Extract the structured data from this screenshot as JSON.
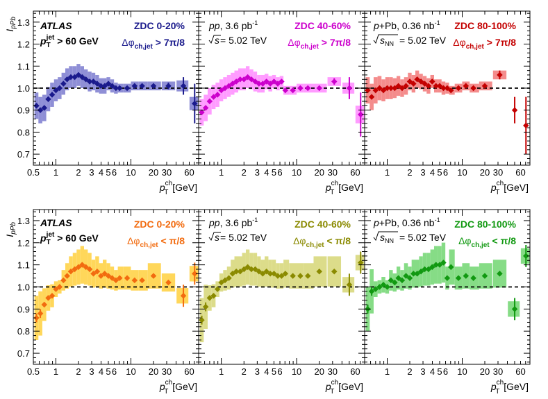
{
  "labels": {
    "atlas": "ATLAS",
    "jet_cut_1": "p",
    "jet_cut_2": "T",
    "jet_cut_3": "jet",
    "jet_cut_4": " > 60 GeV",
    "pp_1": "pp",
    "pp_2": ", 3.6 pb",
    "pp_3": "-1",
    "sqrt_s": "s",
    "energy": " = 5.02 TeV",
    "ppb_1": "p",
    "ppb_2": "+Pb, 0.36 nb",
    "ppb_3": "-1",
    "sqrt_snn": "s",
    "sqrt_snn_sub": "NN",
    "ylabel_main": "I",
    "ylabel_sub": "pPb",
    "xlabel_main": "p",
    "xlabel_sup": "ch",
    "xlabel_sub": "T",
    "xlabel_unit": " [GeV]",
    "dphi_sym": "Δφ",
    "dphi_sub": "ch,jet",
    "cut_away": " > 7π/8",
    "cut_near": " < π/8"
  },
  "chart_data": [
    {
      "type": "scatter",
      "title": "ZDC 0-20%",
      "selection": "away",
      "color": "#1a1a8c",
      "band_color": "#8f8fd6",
      "xlabel": "p_T^ch [GeV]",
      "ylabel": "I_pPb",
      "xscale": "log",
      "xlim": [
        0.5,
        80
      ],
      "ylim": [
        0.65,
        1.35
      ],
      "x": [
        0.55,
        0.62,
        0.7,
        0.79,
        0.89,
        1.0,
        1.12,
        1.26,
        1.41,
        1.58,
        1.78,
        2.0,
        2.24,
        2.51,
        2.82,
        3.16,
        3.55,
        3.98,
        4.47,
        5.01,
        5.62,
        6.31,
        7.08,
        8.91,
        11.2,
        14.1,
        20.0,
        31.6,
        50.1,
        70.8
      ],
      "values": [
        0.92,
        0.9,
        0.91,
        0.95,
        0.97,
        0.99,
        1.0,
        1.02,
        1.04,
        1.05,
        1.05,
        1.06,
        1.05,
        1.04,
        1.03,
        1.03,
        1.02,
        1.01,
        1.01,
        1.02,
        1.01,
        1.0,
        1.0,
        1.0,
        1.01,
        1.01,
        1.01,
        1.01,
        1.01,
        0.93
      ],
      "band": [
        0.06,
        0.06,
        0.06,
        0.055,
        0.055,
        0.05,
        0.05,
        0.05,
        0.05,
        0.05,
        0.05,
        0.05,
        0.05,
        0.045,
        0.045,
        0.04,
        0.04,
        0.035,
        0.035,
        0.03,
        0.03,
        0.025,
        0.02,
        0.02,
        0.02,
        0.02,
        0.02,
        0.02,
        0.025,
        0.03
      ],
      "err": [
        0.01,
        0.01,
        0.01,
        0.01,
        0.01,
        0.01,
        0.01,
        0.01,
        0.01,
        0.01,
        0.01,
        0.01,
        0.01,
        0.01,
        0.01,
        0.01,
        0.01,
        0.01,
        0.01,
        0.01,
        0.01,
        0.01,
        0.01,
        0.01,
        0.01,
        0.01,
        0.01,
        0.015,
        0.04,
        0.09
      ]
    },
    {
      "type": "scatter",
      "title": "ZDC 40-60%",
      "selection": "away",
      "color": "#cc00cc",
      "band_color": "#ff9cff",
      "xlabel": "p_T^ch [GeV]",
      "ylabel": "I_pPb",
      "xscale": "log",
      "xlim": [
        0.5,
        80
      ],
      "ylim": [
        0.65,
        1.35
      ],
      "x": [
        0.55,
        0.62,
        0.7,
        0.79,
        0.89,
        1.0,
        1.12,
        1.26,
        1.41,
        1.58,
        1.78,
        2.0,
        2.24,
        2.51,
        2.82,
        3.16,
        3.55,
        3.98,
        4.47,
        5.01,
        5.62,
        6.31,
        7.08,
        8.91,
        11.2,
        14.1,
        20.0,
        31.6,
        50.1,
        70.8
      ],
      "values": [
        0.89,
        0.91,
        0.94,
        0.96,
        0.97,
        0.99,
        1.0,
        1.01,
        1.02,
        1.03,
        1.04,
        1.04,
        1.05,
        1.04,
        1.03,
        1.02,
        1.02,
        1.03,
        1.02,
        1.03,
        1.02,
        1.03,
        0.99,
        0.99,
        1.0,
        1.0,
        1.0,
        1.03,
        1.0,
        0.88
      ],
      "band": [
        0.06,
        0.06,
        0.06,
        0.055,
        0.055,
        0.05,
        0.05,
        0.05,
        0.05,
        0.05,
        0.05,
        0.05,
        0.05,
        0.045,
        0.045,
        0.04,
        0.04,
        0.035,
        0.035,
        0.03,
        0.03,
        0.025,
        0.02,
        0.02,
        0.02,
        0.02,
        0.02,
        0.02,
        0.025,
        0.04
      ],
      "err": [
        0.01,
        0.01,
        0.01,
        0.01,
        0.01,
        0.01,
        0.01,
        0.01,
        0.01,
        0.01,
        0.01,
        0.01,
        0.01,
        0.01,
        0.01,
        0.01,
        0.01,
        0.01,
        0.01,
        0.01,
        0.01,
        0.01,
        0.01,
        0.01,
        0.01,
        0.01,
        0.01,
        0.015,
        0.05,
        0.1
      ]
    },
    {
      "type": "scatter",
      "title": "ZDC 80-100%",
      "selection": "away",
      "color": "#c40000",
      "band_color": "#f48c8c",
      "xlabel": "p_T^ch [GeV]",
      "ylabel": "I_pPb",
      "xscale": "log",
      "xlim": [
        0.5,
        80
      ],
      "ylim": [
        0.65,
        1.35
      ],
      "x": [
        0.55,
        0.62,
        0.7,
        0.79,
        0.89,
        1.0,
        1.12,
        1.26,
        1.41,
        1.58,
        1.78,
        2.0,
        2.24,
        2.51,
        2.82,
        3.16,
        3.55,
        3.98,
        4.47,
        5.01,
        5.62,
        6.31,
        7.08,
        8.91,
        11.2,
        14.1,
        20.0,
        31.6,
        50.1,
        70.8
      ],
      "values": [
        0.99,
        0.96,
        0.99,
        1.0,
        0.99,
        1.0,
        1.0,
        1.0,
        1.01,
        1.0,
        1.01,
        1.03,
        1.02,
        1.04,
        1.03,
        1.02,
        1.01,
        1.03,
        1.01,
        1.01,
        1.0,
        1.0,
        0.99,
        1.0,
        1.01,
        1.0,
        1.01,
        1.06,
        0.9,
        0.83
      ],
      "band": [
        0.06,
        0.06,
        0.06,
        0.055,
        0.05,
        0.05,
        0.05,
        0.045,
        0.045,
        0.04,
        0.04,
        0.04,
        0.04,
        0.04,
        0.035,
        0.035,
        0.035,
        0.03,
        0.03,
        0.03,
        0.03,
        0.025,
        0.02,
        0.02,
        0.02,
        0.02,
        0.02,
        0.02,
        0.0,
        0.0
      ],
      "err": [
        0.01,
        0.01,
        0.01,
        0.01,
        0.01,
        0.01,
        0.01,
        0.01,
        0.01,
        0.01,
        0.01,
        0.01,
        0.01,
        0.01,
        0.01,
        0.01,
        0.01,
        0.01,
        0.01,
        0.01,
        0.01,
        0.01,
        0.01,
        0.01,
        0.01,
        0.01,
        0.01,
        0.02,
        0.06,
        0.13
      ]
    },
    {
      "type": "scatter",
      "title": "ZDC 0-20%",
      "selection": "near",
      "color": "#f26b0f",
      "band_color": "#ffd75a",
      "xlabel": "p_T^ch [GeV]",
      "ylabel": "I_pPb",
      "xscale": "log",
      "xlim": [
        0.5,
        80
      ],
      "ylim": [
        0.65,
        1.35
      ],
      "x": [
        0.55,
        0.62,
        0.7,
        0.79,
        0.89,
        1.0,
        1.12,
        1.26,
        1.41,
        1.58,
        1.78,
        2.0,
        2.24,
        2.51,
        2.82,
        3.16,
        3.55,
        3.98,
        4.47,
        5.01,
        5.62,
        6.31,
        7.08,
        8.91,
        11.2,
        14.1,
        20.0,
        31.6,
        50.1,
        70.8
      ],
      "values": [
        0.86,
        0.88,
        0.92,
        0.95,
        0.96,
        0.99,
        1.0,
        1.03,
        1.05,
        1.07,
        1.08,
        1.09,
        1.1,
        1.09,
        1.08,
        1.06,
        1.07,
        1.05,
        1.06,
        1.05,
        1.04,
        1.03,
        1.04,
        1.04,
        1.03,
        1.03,
        1.05,
        1.02,
        0.96,
        1.06
      ]
    },
    {
      "type": "scatter",
      "title": "ZDC 40-60%",
      "selection": "near",
      "color": "#8a8a00",
      "band_color": "#dcdc8a",
      "xlabel": "p_T^ch [GeV]",
      "ylabel": "I_pPb",
      "xscale": "log",
      "xlim": [
        0.5,
        80
      ],
      "ylim": [
        0.65,
        1.35
      ],
      "x": [
        0.55,
        0.62,
        0.7,
        0.79,
        0.89,
        1.0,
        1.12,
        1.26,
        1.41,
        1.58,
        1.78,
        2.0,
        2.24,
        2.51,
        2.82,
        3.16,
        3.55,
        3.98,
        4.47,
        5.01,
        5.62,
        6.31,
        7.08,
        8.91,
        11.2,
        14.1,
        20.0,
        31.6,
        50.1,
        70.8
      ],
      "values": [
        0.85,
        0.91,
        0.95,
        0.96,
        0.99,
        1.02,
        1.03,
        1.04,
        1.06,
        1.07,
        1.07,
        1.08,
        1.09,
        1.08,
        1.08,
        1.07,
        1.06,
        1.07,
        1.06,
        1.06,
        1.05,
        1.05,
        1.06,
        1.05,
        1.05,
        1.05,
        1.07,
        1.07,
        1.01,
        1.11
      ]
    },
    {
      "type": "scatter",
      "title": "ZDC 80-100%",
      "selection": "near",
      "color": "#119911",
      "band_color": "#86dc86",
      "xlabel": "p_T^ch [GeV]",
      "ylabel": "I_pPb",
      "xscale": "log",
      "xlim": [
        0.5,
        80
      ],
      "ylim": [
        0.65,
        1.35
      ],
      "x": [
        0.55,
        0.62,
        0.7,
        0.79,
        0.89,
        1.0,
        1.12,
        1.26,
        1.41,
        1.58,
        1.78,
        2.0,
        2.24,
        2.51,
        2.82,
        3.16,
        3.55,
        3.98,
        4.47,
        5.01,
        5.62,
        6.31,
        7.08,
        8.91,
        11.2,
        14.1,
        20.0,
        31.6,
        50.1,
        70.8
      ],
      "values": [
        0.9,
        0.98,
        0.99,
        1.0,
        1.01,
        1.0,
        1.03,
        1.02,
        1.04,
        1.03,
        1.05,
        1.04,
        1.06,
        1.06,
        1.07,
        1.08,
        1.08,
        1.09,
        1.1,
        1.1,
        1.11,
        1.04,
        1.09,
        1.04,
        1.05,
        1.04,
        1.05,
        1.06,
        0.9,
        1.14
      ]
    }
  ]
}
